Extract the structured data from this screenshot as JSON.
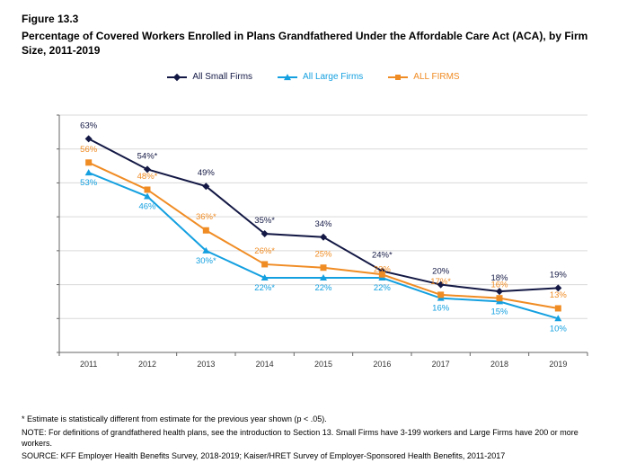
{
  "figure_label": "Figure 13.3",
  "title": "Percentage of Covered Workers Enrolled in Plans Grandfathered Under the Affordable Care Act (ACA), by Firm Size, 2011-2019",
  "legend": [
    {
      "label": "All Small Firms",
      "color": "#131844",
      "marker": "diamond"
    },
    {
      "label": "All Large Firms",
      "color": "#14a0e0",
      "marker": "triangle"
    },
    {
      "label": "ALL FIRMS",
      "color": "#f08c24",
      "marker": "square"
    }
  ],
  "chart": {
    "type": "line",
    "categories": [
      "2011",
      "2012",
      "2013",
      "2014",
      "2015",
      "2016",
      "2017",
      "2018",
      "2019"
    ],
    "ylim": [
      0,
      70
    ],
    "ytick_step": 10,
    "y_suffix": "%",
    "background_color": "#ffffff",
    "grid_color": "#d9d9d9",
    "axis_color": "#666666",
    "font_size_ticks": 9,
    "font_size_labels": 9.5,
    "series": [
      {
        "name": "All Small Firms",
        "color": "#131844",
        "marker": "diamond",
        "values": [
          63,
          54,
          49,
          35,
          34,
          24,
          20,
          18,
          19
        ],
        "labels": [
          "63%",
          "54%*",
          "49%",
          "35%*",
          "34%",
          "24%*",
          "20%",
          "18%",
          "19%"
        ],
        "label_dy": [
          -12,
          -12,
          -12,
          -12,
          -12,
          -15,
          -12,
          -12,
          -12
        ]
      },
      {
        "name": "All Large Firms",
        "color": "#14a0e0",
        "marker": "triangle",
        "values": [
          53,
          46,
          30,
          22,
          22,
          22,
          16,
          15,
          10
        ],
        "labels": [
          "53%",
          "46%",
          "30%*",
          "22%*",
          "22%",
          "22%",
          "16%",
          "15%",
          "10%"
        ],
        "label_dy": [
          14,
          14,
          14,
          14,
          14,
          14,
          14,
          14,
          14
        ]
      },
      {
        "name": "ALL FIRMS",
        "color": "#f08c24",
        "marker": "square",
        "values": [
          56,
          48,
          36,
          26,
          25,
          23,
          17,
          16,
          13
        ],
        "labels": [
          "56%",
          "48%*",
          "36%*",
          "26%*",
          "25%",
          "23%",
          "17%*",
          "16%",
          "13%"
        ],
        "label_dy": [
          -12,
          -12,
          -12,
          -12,
          -12,
          -3,
          -12,
          -12,
          -12
        ]
      }
    ]
  },
  "notes": [
    "* Estimate is statistically different from estimate for the previous year shown (p < .05).",
    "NOTE: For definitions of grandfathered health plans, see the introduction to Section 13. Small Firms have 3-199 workers and Large Firms have 200 or more workers.",
    "SOURCE: KFF Employer Health Benefits Survey, 2018-2019; Kaiser/HRET Survey of Employer-Sponsored Health Benefits, 2011-2017"
  ]
}
